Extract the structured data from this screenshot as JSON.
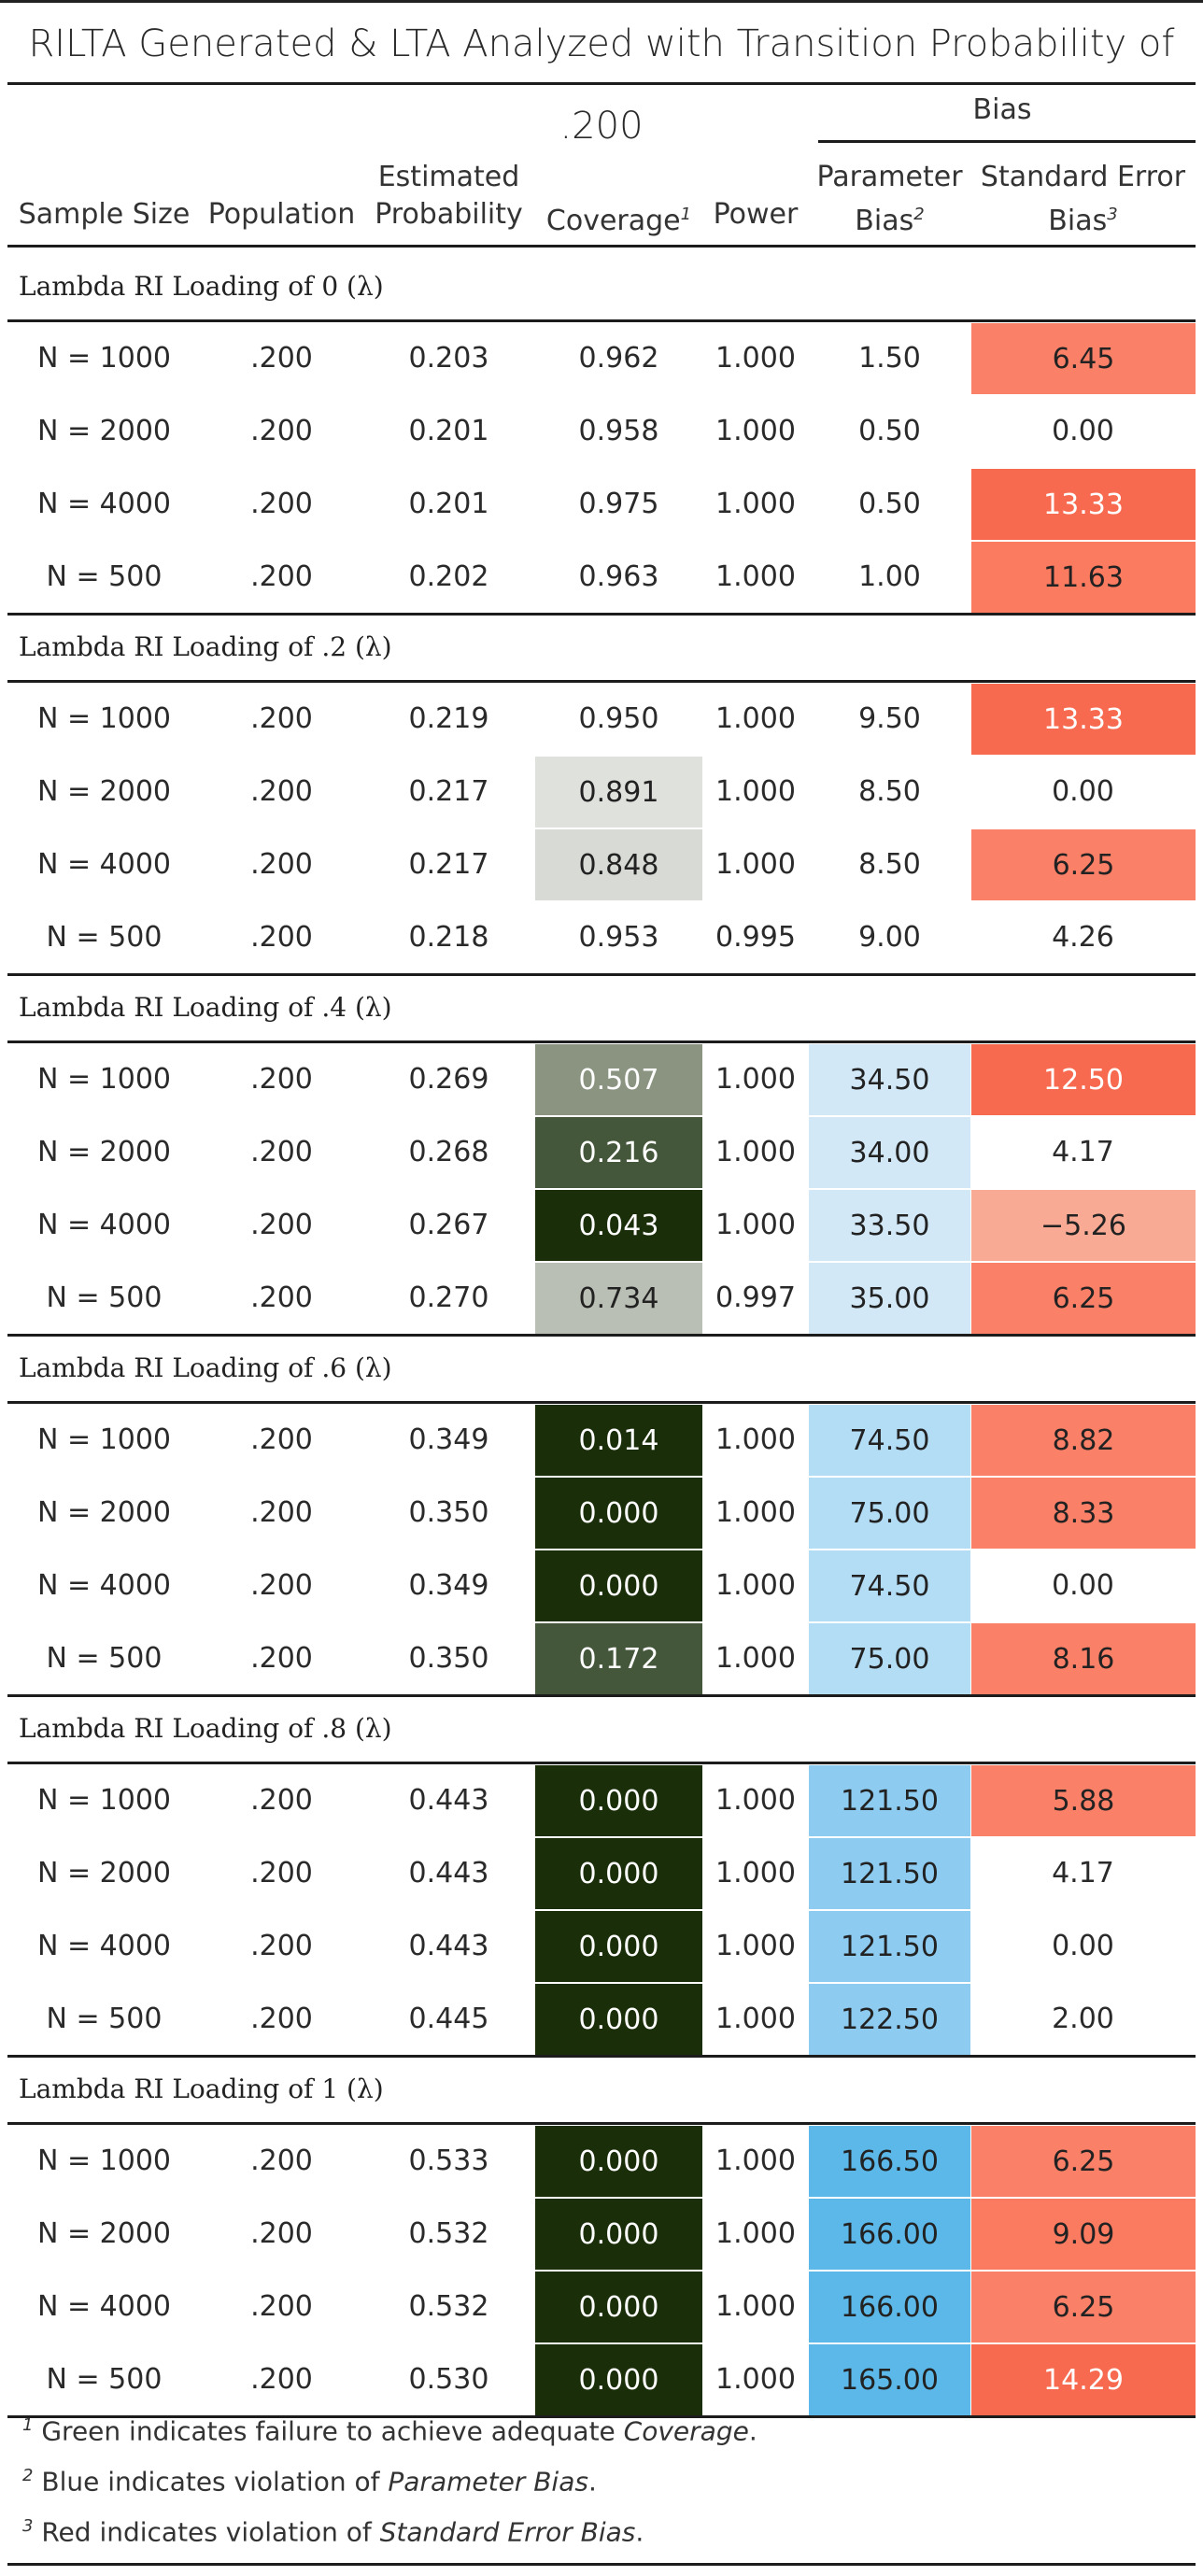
{
  "title": "RILTA Generated & LTA Analyzed with Transition Probability of .200",
  "header": {
    "bias_group": "Bias",
    "columns": [
      {
        "lines": [
          "Sample Size"
        ],
        "sup": ""
      },
      {
        "lines": [
          "Population"
        ],
        "sup": ""
      },
      {
        "lines": [
          "Estimated",
          "Probability"
        ],
        "sup": ""
      },
      {
        "lines": [
          "Coverage"
        ],
        "sup": "1"
      },
      {
        "lines": [
          "Power"
        ],
        "sup": ""
      },
      {
        "lines": [
          "Parameter",
          "Bias"
        ],
        "sup": "2"
      },
      {
        "lines": [
          "Standard Error",
          "Bias"
        ],
        "sup": "3"
      }
    ]
  },
  "groups": [
    {
      "title": "Lambda RI Loading of 0 (λ)",
      "rows": [
        [
          "N = 1000",
          ".200",
          "0.203",
          "0.962",
          "1.000",
          "1.50",
          "6.45"
        ],
        [
          "N = 2000",
          ".200",
          "0.201",
          "0.958",
          "1.000",
          "0.50",
          "0.00"
        ],
        [
          "N = 4000",
          ".200",
          "0.201",
          "0.975",
          "1.000",
          "0.50",
          "13.33"
        ],
        [
          "N = 500",
          ".200",
          "0.202",
          "0.963",
          "1.000",
          "1.00",
          "11.63"
        ]
      ]
    },
    {
      "title": "Lambda RI Loading of .2 (λ)",
      "rows": [
        [
          "N = 1000",
          ".200",
          "0.219",
          "0.950",
          "1.000",
          "9.50",
          "13.33"
        ],
        [
          "N = 2000",
          ".200",
          "0.217",
          "0.891",
          "1.000",
          "8.50",
          "0.00"
        ],
        [
          "N = 4000",
          ".200",
          "0.217",
          "0.848",
          "1.000",
          "8.50",
          "6.25"
        ],
        [
          "N = 500",
          ".200",
          "0.218",
          "0.953",
          "0.995",
          "9.00",
          "4.26"
        ]
      ]
    },
    {
      "title": "Lambda RI Loading of .4 (λ)",
      "rows": [
        [
          "N = 1000",
          ".200",
          "0.269",
          "0.507",
          "1.000",
          "34.50",
          "12.50"
        ],
        [
          "N = 2000",
          ".200",
          "0.268",
          "0.216",
          "1.000",
          "34.00",
          "4.17"
        ],
        [
          "N = 4000",
          ".200",
          "0.267",
          "0.043",
          "1.000",
          "33.50",
          "−5.26"
        ],
        [
          "N = 500",
          ".200",
          "0.270",
          "0.734",
          "0.997",
          "35.00",
          "6.25"
        ]
      ]
    },
    {
      "title": "Lambda RI Loading of .6 (λ)",
      "rows": [
        [
          "N = 1000",
          ".200",
          "0.349",
          "0.014",
          "1.000",
          "74.50",
          "8.82"
        ],
        [
          "N = 2000",
          ".200",
          "0.350",
          "0.000",
          "1.000",
          "75.00",
          "8.33"
        ],
        [
          "N = 4000",
          ".200",
          "0.349",
          "0.000",
          "1.000",
          "74.50",
          "0.00"
        ],
        [
          "N = 500",
          ".200",
          "0.350",
          "0.172",
          "1.000",
          "75.00",
          "8.16"
        ]
      ]
    },
    {
      "title": "Lambda RI Loading of .8 (λ)",
      "rows": [
        [
          "N = 1000",
          ".200",
          "0.443",
          "0.000",
          "1.000",
          "121.50",
          "5.88"
        ],
        [
          "N = 2000",
          ".200",
          "0.443",
          "0.000",
          "1.000",
          "121.50",
          "4.17"
        ],
        [
          "N = 4000",
          ".200",
          "0.443",
          "0.000",
          "1.000",
          "121.50",
          "0.00"
        ],
        [
          "N = 500",
          ".200",
          "0.445",
          "0.000",
          "1.000",
          "122.50",
          "2.00"
        ]
      ]
    },
    {
      "title": "Lambda RI Loading of 1 (λ)",
      "rows": [
        [
          "N = 1000",
          ".200",
          "0.533",
          "0.000",
          "1.000",
          "166.50",
          "6.25"
        ],
        [
          "N = 2000",
          ".200",
          "0.532",
          "0.000",
          "1.000",
          "166.00",
          "9.09"
        ],
        [
          "N = 4000",
          ".200",
          "0.532",
          "0.000",
          "1.000",
          "166.00",
          "6.25"
        ],
        [
          "N = 500",
          ".200",
          "0.530",
          "0.000",
          "1.000",
          "165.00",
          "14.29"
        ]
      ]
    }
  ],
  "colors": {
    "coverage_green_dark": "#1a2e0a",
    "coverage_green_mid": "#44573a",
    "coverage_green_light": "#dfe1dc",
    "param_blue_light": "#d2e8f7",
    "param_blue_dark": "#5bb8e8",
    "se_red_light": "#f8aa94",
    "se_red": "#fb8068",
    "se_red_dark": "#f86a4f"
  },
  "footnotes": [
    {
      "sup": "1",
      "text": "Green indicates failure to achieve adequate ",
      "em": "Coverage",
      "end": "."
    },
    {
      "sup": "2",
      "text": "Blue indicates violation of ",
      "em": "Parameter Bias",
      "end": "."
    },
    {
      "sup": "3",
      "text": "Red indicates violation of ",
      "em": "Standard Error Bias",
      "end": "."
    }
  ]
}
